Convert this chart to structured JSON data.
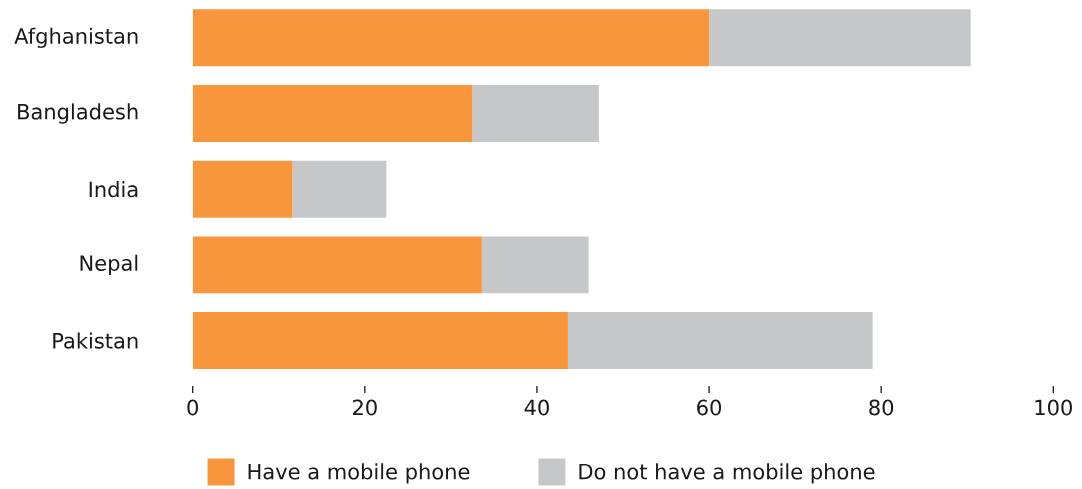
{
  "chart_data": {
    "type": "bar",
    "orientation": "horizontal",
    "stacked": true,
    "categories": [
      "Afghanistan",
      "Bangladesh",
      "India",
      "Nepal",
      "Pakistan"
    ],
    "series": [
      {
        "name": "Have a mobile phone",
        "color": "#f7963c",
        "values": [
          60,
          32.5,
          11.6,
          33.6,
          43.6
        ]
      },
      {
        "name": "Do not have a mobile phone",
        "color": "#c6c7c8",
        "values": [
          30.4,
          14.7,
          10.9,
          12.4,
          35.4
        ]
      }
    ],
    "xlim": [
      0,
      100
    ],
    "xticks": [
      0,
      20,
      40,
      60,
      80,
      100
    ],
    "legend": "bottom"
  }
}
